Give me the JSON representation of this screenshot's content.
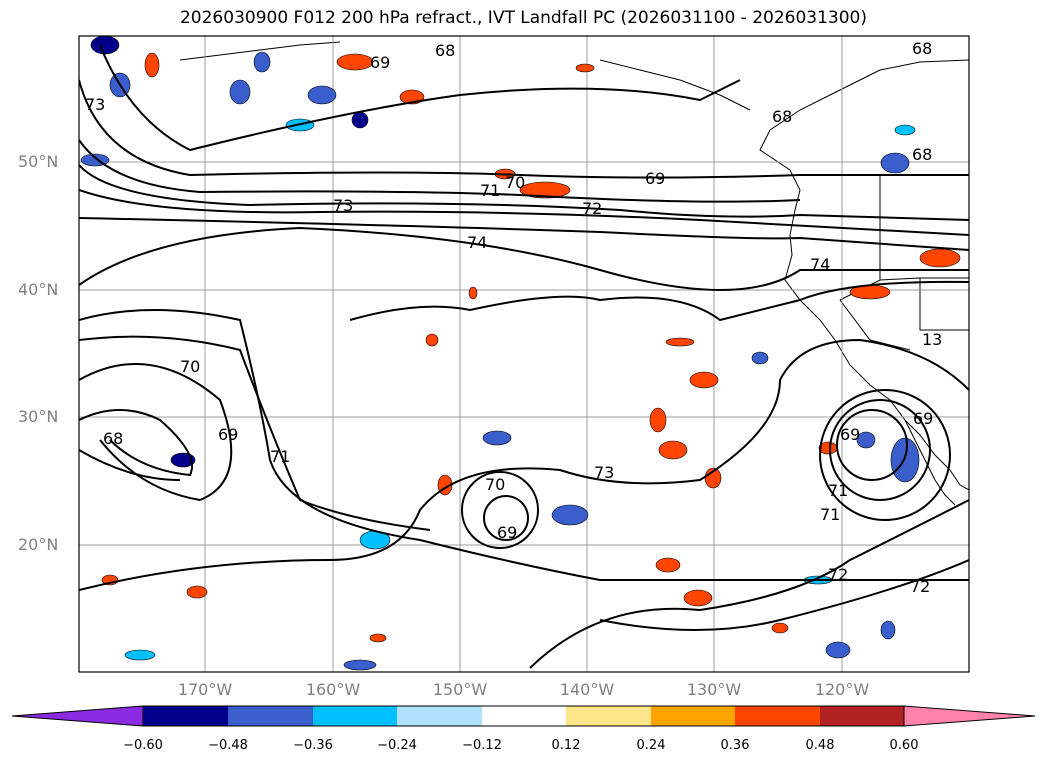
{
  "title": "2026030900 F012 200 hPa refract., IVT Landfall PC (2026031100 - 2026031300)",
  "lat_labels": [
    "50°N",
    "40°N",
    "30°N",
    "20°N"
  ],
  "lon_labels": [
    "170°W",
    "160°W",
    "150°W",
    "140°W",
    "130°W",
    "120°W"
  ],
  "contour_labels": [
    "68",
    "73",
    "68",
    "69",
    "68",
    "68",
    "70",
    "71",
    "69",
    "73",
    "72",
    "74",
    "74",
    "13",
    "70",
    "69",
    "71",
    "68",
    "69",
    "71",
    "73",
    "70",
    "69",
    "69",
    "71",
    "72",
    "72"
  ],
  "colorbar": {
    "ticks": [
      "−0.60",
      "−0.48",
      "−0.36",
      "−0.24",
      "−0.12",
      "0.12",
      "0.24",
      "0.36",
      "0.48",
      "0.60"
    ],
    "colors": [
      "#8a2be2",
      "#00008b",
      "#3a5fcd",
      "#00bfff",
      "#b0e2ff",
      "#ffffff",
      "#fde68a",
      "#ffa500",
      "#ff4500",
      "#b22222",
      "#ff82ab"
    ]
  },
  "colors": {
    "land_line": "#000000",
    "grid": "#9e9e9e",
    "contour": "#000000"
  }
}
